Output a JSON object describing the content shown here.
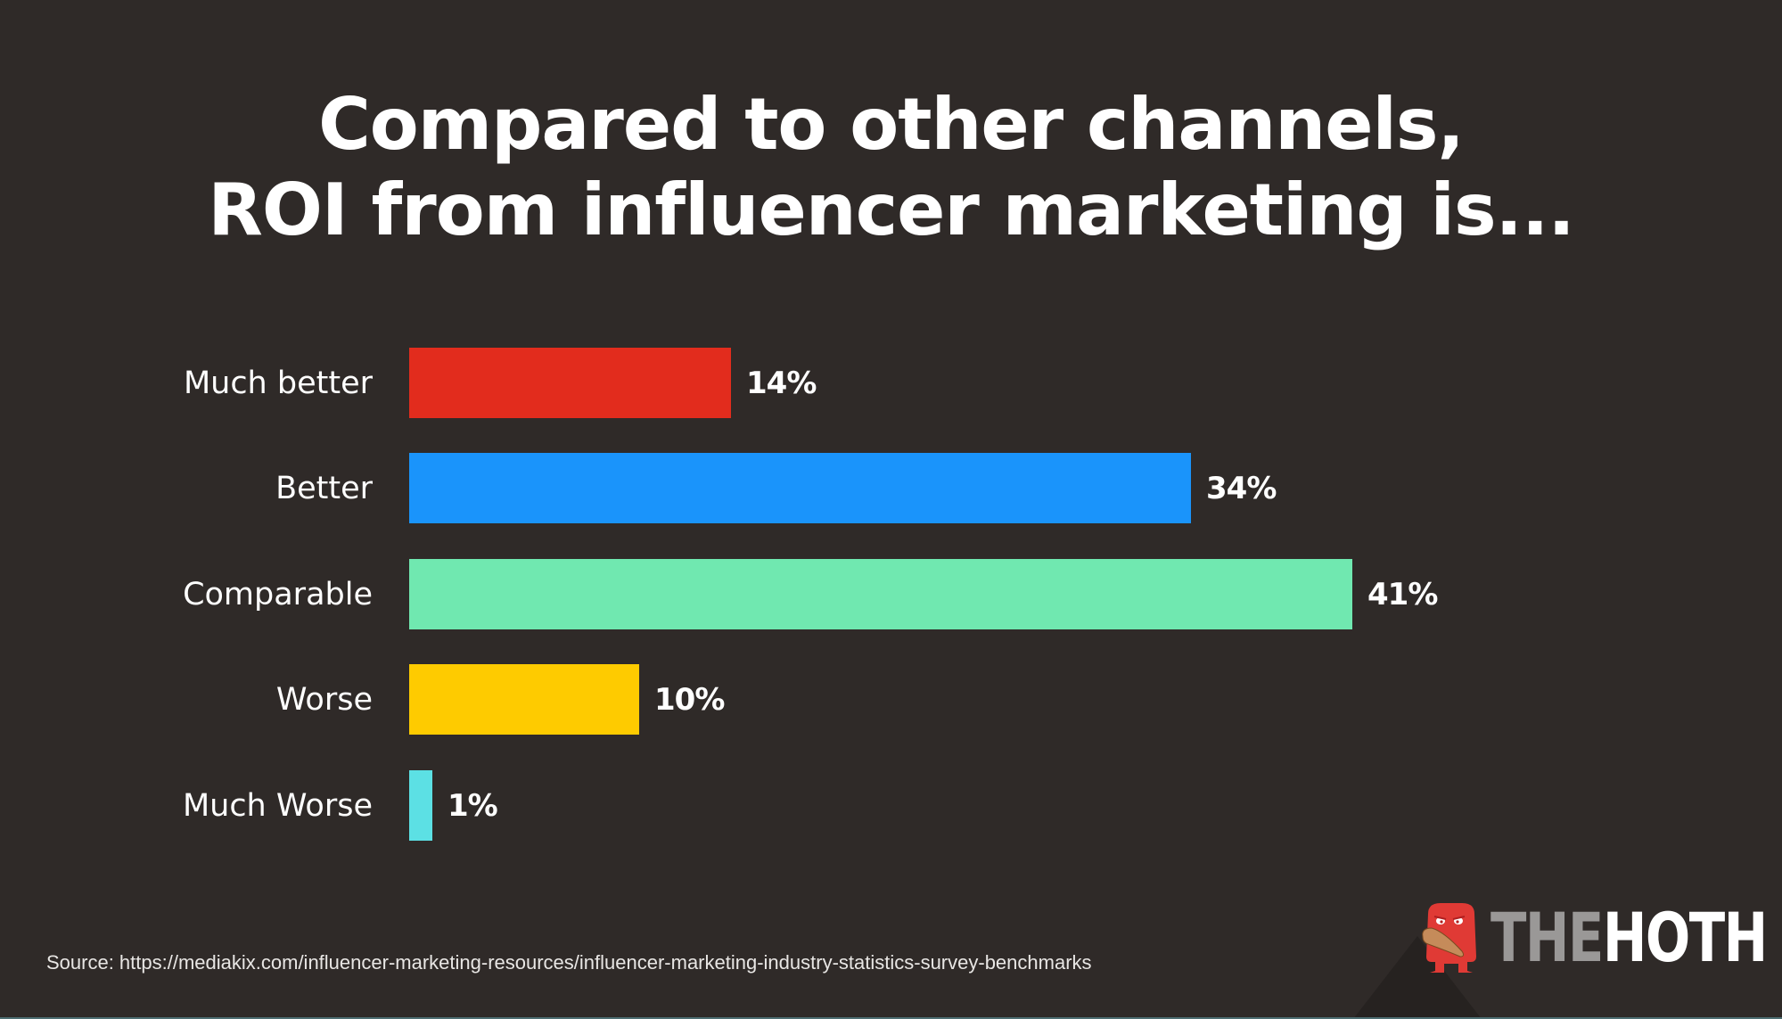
{
  "title": {
    "line1": "Compared to other channels,",
    "line2": "ROI from influencer marketing is..."
  },
  "source": "Source: https://mediakix.com/influencer-marketing-resources/influencer-marketing-industry-statistics-survey-benchmarks",
  "logo": {
    "icon": "red-monster-with-club-icon",
    "text_the": "THE",
    "text_hoth": "HOTH"
  },
  "colors": {
    "background": "#2f2a28",
    "much_better": "#e22c1d",
    "better": "#1a94fb",
    "comparable": "#70e8b0",
    "worse": "#fecb00",
    "much_worse": "#5ce0e4"
  },
  "chart_data": {
    "type": "bar",
    "orientation": "horizontal",
    "title": "Compared to other channels, ROI from influencer marketing is...",
    "categories": [
      "Much better",
      "Better",
      "Comparable",
      "Worse",
      "Much Worse"
    ],
    "values": [
      14,
      34,
      41,
      10,
      1
    ],
    "value_labels": [
      "14%",
      "34%",
      "41%",
      "10%",
      "1%"
    ],
    "colors": [
      "#e22c1d",
      "#1a94fb",
      "#70e8b0",
      "#fecb00",
      "#5ce0e4"
    ],
    "xlabel": "",
    "ylabel": "",
    "xlim": [
      0,
      41
    ],
    "grid": false,
    "legend": "none",
    "units": "%"
  }
}
